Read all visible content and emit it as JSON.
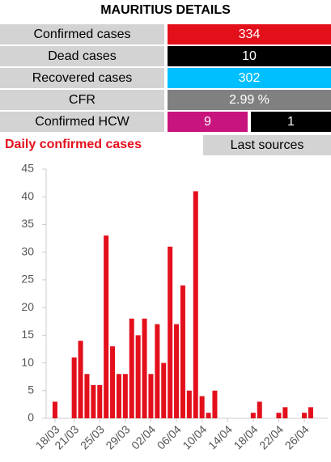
{
  "header": {
    "title": "MAURITIUS DETAILS"
  },
  "details": {
    "rows": [
      {
        "label": "Confirmed cases",
        "values": [
          "334"
        ]
      },
      {
        "label": "Dead cases",
        "values": [
          "10"
        ]
      },
      {
        "label": "Recovered cases",
        "values": [
          "302"
        ]
      },
      {
        "label": "CFR",
        "values": [
          "2.99 %"
        ]
      },
      {
        "label": "Confirmed HCW",
        "values": [
          "9",
          "1"
        ]
      }
    ]
  },
  "button": {
    "label": "Last sources"
  },
  "chart_data": {
    "type": "bar",
    "title": "Daily confirmed cases",
    "color": "#e3101c",
    "categories": [
      "18/03",
      null,
      null,
      "21/03",
      null,
      null,
      null,
      "25/03",
      null,
      null,
      null,
      "29/03",
      null,
      null,
      null,
      "02/04",
      null,
      null,
      null,
      "06/04",
      null,
      null,
      null,
      "10/04",
      null,
      null,
      null,
      "14/04",
      null,
      null,
      null,
      "18/04",
      null,
      null,
      null,
      "22/04",
      null,
      null,
      null,
      "26/04",
      null
    ],
    "values": [
      3,
      0,
      0,
      11,
      14,
      8,
      6,
      6,
      33,
      13,
      8,
      8,
      18,
      15,
      18,
      8,
      17,
      10,
      31,
      17,
      24,
      5,
      41,
      4,
      1,
      5,
      0,
      0,
      0,
      0,
      0,
      1,
      3,
      0,
      0,
      1,
      2,
      0,
      0,
      1,
      2
    ],
    "ylim": [
      0,
      45
    ],
    "yticks": [
      0,
      5,
      10,
      15,
      20,
      25,
      30,
      35,
      40,
      45
    ]
  }
}
